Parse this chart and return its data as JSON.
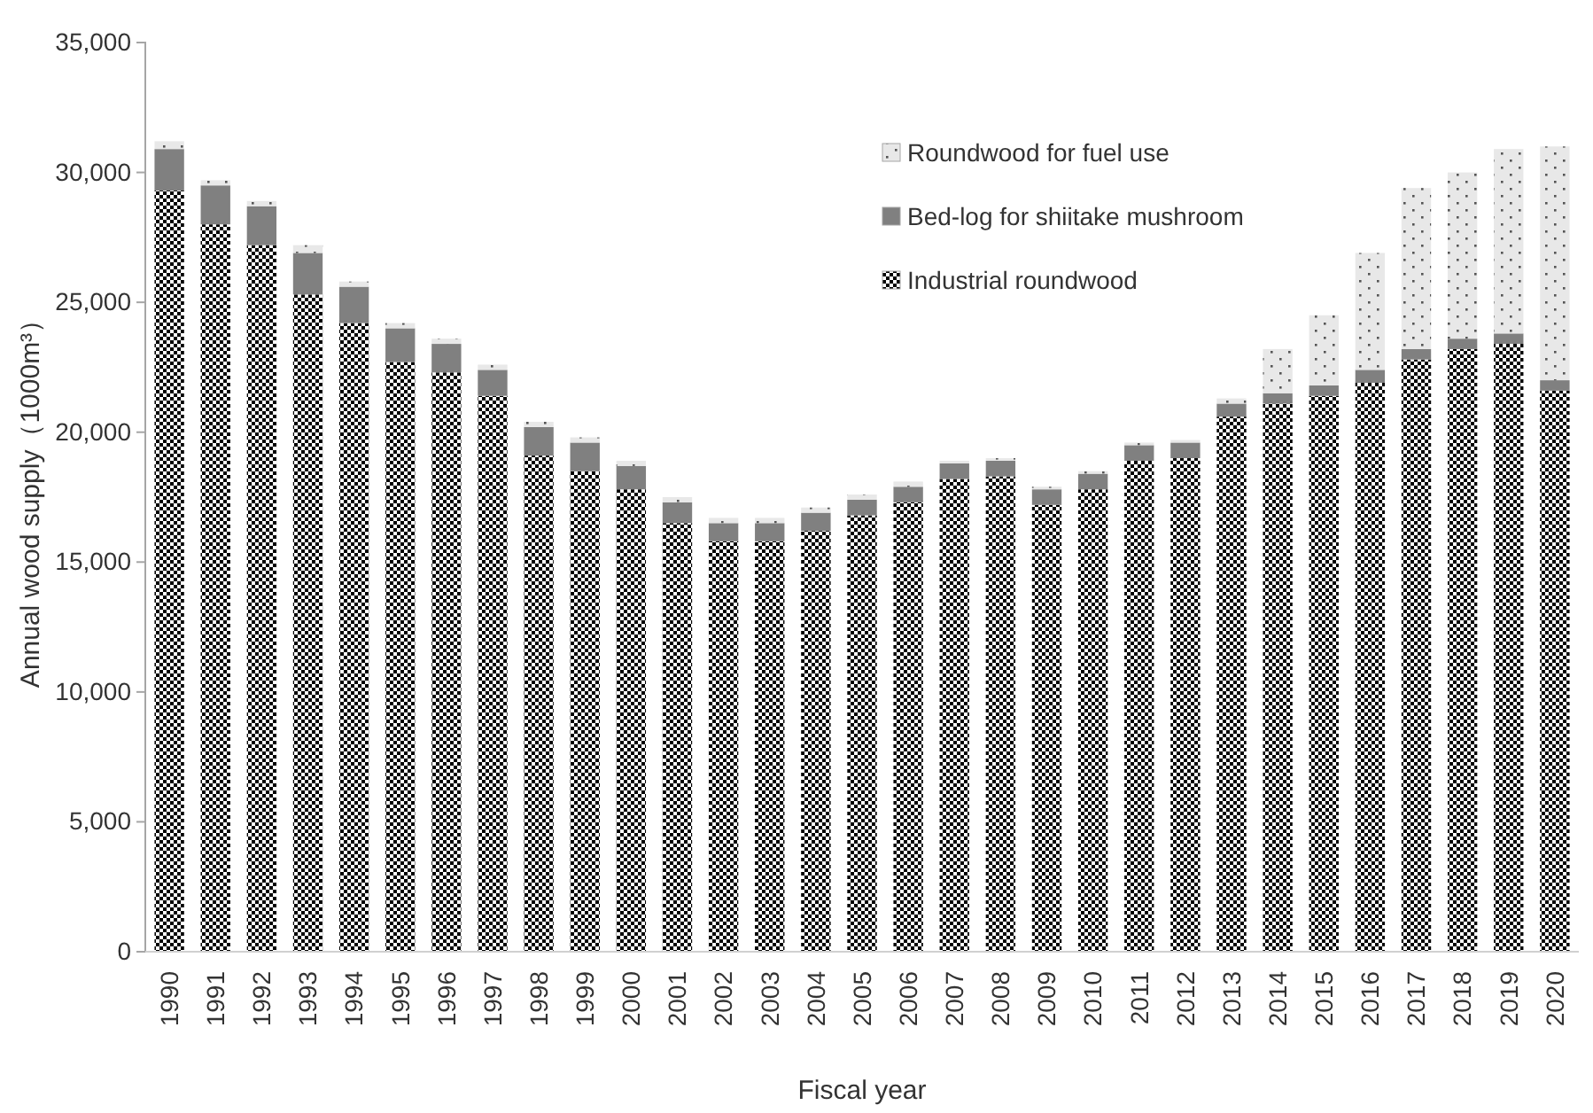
{
  "chart_data": {
    "type": "bar",
    "stacked": true,
    "xlabel": "Fiscal year",
    "ylabel": "Annual wood supply（1000m³）",
    "categories": [
      "1990",
      "1991",
      "1992",
      "1993",
      "1994",
      "1995",
      "1996",
      "1997",
      "1998",
      "1999",
      "2000",
      "2001",
      "2002",
      "2003",
      "2004",
      "2005",
      "2006",
      "2007",
      "2008",
      "2009",
      "2010",
      "2011",
      "2012",
      "2013",
      "2014",
      "2015",
      "2016",
      "2017",
      "2018",
      "2019",
      "2020"
    ],
    "series": [
      {
        "name": "Industrial roundwood",
        "color": "#000000",
        "values": [
          29300,
          28000,
          27200,
          25300,
          24200,
          22700,
          22300,
          21400,
          19100,
          18500,
          17800,
          16500,
          15800,
          15800,
          16200,
          16800,
          17300,
          18200,
          18300,
          17200,
          17800,
          18900,
          19000,
          20600,
          21100,
          21400,
          21900,
          22800,
          23200,
          23400,
          21600
        ]
      },
      {
        "name": "Bed-log for shiitake mushroom",
        "color": "#808080",
        "values": [
          1600,
          1500,
          1500,
          1600,
          1400,
          1300,
          1100,
          1000,
          1100,
          1100,
          900,
          800,
          700,
          700,
          700,
          600,
          600,
          600,
          600,
          600,
          600,
          600,
          600,
          500,
          400,
          400,
          500,
          400,
          400,
          400,
          400
        ]
      },
      {
        "name": "Roundwood for fuel use",
        "color": "#e8e8e8",
        "values": [
          300,
          200,
          200,
          300,
          200,
          200,
          200,
          200,
          200,
          200,
          200,
          200,
          200,
          200,
          200,
          200,
          200,
          100,
          100,
          100,
          100,
          100,
          100,
          200,
          1700,
          2700,
          4500,
          6200,
          6400,
          7100,
          9000
        ]
      }
    ],
    "ylim": [
      0,
      35000
    ],
    "yticks": [
      {
        "value": 0,
        "label": "0"
      },
      {
        "value": 5000,
        "label": "5,000"
      },
      {
        "value": 10000,
        "label": "10,000"
      },
      {
        "value": 15000,
        "label": "15,000"
      },
      {
        "value": 20000,
        "label": "20,000"
      },
      {
        "value": 25000,
        "label": "25,000"
      },
      {
        "value": 30000,
        "label": "30,000"
      },
      {
        "value": 35000,
        "label": "35,000"
      }
    ],
    "legend": "top right"
  }
}
